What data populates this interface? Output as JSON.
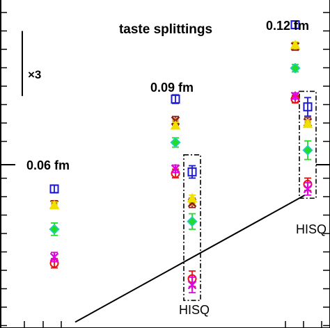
{
  "chart_data": {
    "type": "scatter",
    "title": "taste splittings",
    "scale_label": "×3",
    "lattice_labels": [
      "0.06 fm",
      "0.09 fm",
      "0.12 fm"
    ],
    "hisq_label": "HISQ",
    "colors": {
      "square": "#1a1ad6",
      "cross": "#8b1a1a",
      "triangle": "#f0e000",
      "diamond": "#22dd22",
      "diamond_alt": "#22cccc",
      "star": "#e000e0",
      "circle": "#ee1010",
      "frame": "#000000"
    },
    "series": [
      {
        "name": "",
        "marker": "square",
        "color": "#1a1ad6",
        "x": [
          0.06,
          0.09,
          0.12
        ],
        "y": [
          0.72,
          1.01,
          1.25
        ],
        "err": [
          0.012,
          0.014,
          0.012
        ]
      },
      {
        "name": "",
        "marker": "cross",
        "color": "#8b1a1a",
        "x": [
          0.06,
          0.09,
          0.12
        ],
        "y": [
          0.67,
          0.94,
          1.18
        ],
        "err": [
          0.012,
          0.014,
          0.012
        ]
      },
      {
        "name": "",
        "marker": "triangle",
        "color": "#f0e000",
        "x": [
          0.06,
          0.09,
          0.12
        ],
        "y": [
          0.668,
          0.925,
          1.185
        ],
        "err": [
          0.01,
          0.01,
          0.01
        ]
      },
      {
        "name": "",
        "marker": "diamond",
        "color": "#22dd22",
        "x": [
          0.06,
          0.09,
          0.12
        ],
        "y": [
          0.59,
          0.87,
          1.11
        ],
        "err": [
          0.02,
          0.015,
          0.012
        ]
      },
      {
        "name": "",
        "marker": "circle",
        "color": "#ee1010",
        "x": [
          0.06,
          0.09,
          0.12
        ],
        "y": [
          0.48,
          0.77,
          1.01
        ],
        "err": [
          0.015,
          0.014,
          0.012
        ]
      },
      {
        "name": "",
        "marker": "star",
        "color": "#e000e0",
        "x": [
          0.06,
          0.09,
          0.12
        ],
        "y": [
          0.5,
          0.785,
          1.02
        ],
        "err": [
          0.015,
          0.012,
          0.01
        ]
      }
    ],
    "hisq_series": [
      {
        "name": "",
        "marker": "square",
        "color": "#1a1ad6",
        "x": [
          0.09,
          0.12
        ],
        "y": [
          0.775,
          0.985
        ],
        "err": [
          0.02,
          0.03
        ]
      },
      {
        "name": "",
        "marker": "cross",
        "color": "#8b1a1a",
        "x": [
          0.09,
          0.12
        ],
        "y": [
          0.675,
          0.935
        ],
        "err": [
          0.015,
          0.015
        ]
      },
      {
        "name": "",
        "marker": "triangle",
        "color": "#f0e000",
        "x": [
          0.09,
          0.12
        ],
        "y": [
          0.69,
          0.93
        ],
        "err": [
          0.01,
          0.01
        ]
      },
      {
        "name": "",
        "marker": "diamond",
        "color": "#22dd22",
        "x": [
          0.09,
          0.12
        ],
        "y": [
          0.615,
          0.845
        ],
        "err": [
          0.025,
          0.03
        ]
      },
      {
        "name": "",
        "marker": "circle",
        "color": "#ee1010",
        "x": [
          0.09,
          0.12
        ],
        "y": [
          0.43,
          0.735
        ],
        "err": [
          0.025,
          0.02
        ]
      },
      {
        "name": "",
        "marker": "star",
        "color": "#e000e0",
        "x": [
          0.09,
          0.12
        ],
        "y": [
          0.41,
          0.72
        ],
        "err": [
          0.025,
          0.02
        ]
      }
    ],
    "ylim": [
      0.28,
      1.33
    ],
    "scale_bar": [
      1.02,
      1.23
    ],
    "trend_line": {
      "x": [
        0.06,
        0.12
      ],
      "y": [
        0.29,
        0.7
      ]
    },
    "grid": false,
    "legend": "none"
  }
}
